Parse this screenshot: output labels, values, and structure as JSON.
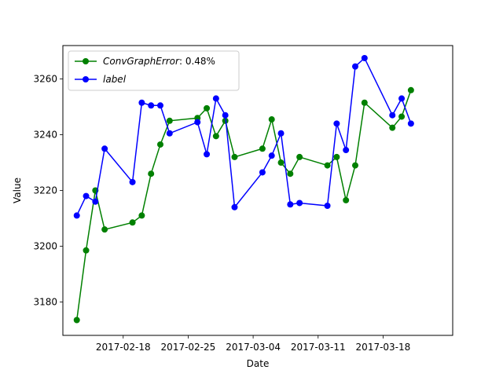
{
  "chart_data": {
    "type": "line",
    "title": "",
    "xlabel": "Date",
    "ylabel": "Value",
    "x_ticks": [
      "2017-02-18",
      "2017-02-25",
      "2017-03-04",
      "2017-03-11",
      "2017-03-18"
    ],
    "y_ticks": [
      3180,
      3200,
      3220,
      3240,
      3260
    ],
    "xlim": [
      "2017-02-11T12:00",
      "2017-03-25T12:00"
    ],
    "ylim": [
      3168,
      3272
    ],
    "grid": false,
    "legend_position": "top-left",
    "series": [
      {
        "name": "ConvGraphError: 0.48%",
        "name_italic": "ConvGraphError",
        "name_plain": ": 0.48%",
        "color": "#008000",
        "points": [
          {
            "x": "2017-02-13",
            "y": 3173.5
          },
          {
            "x": "2017-02-14",
            "y": 3198.5
          },
          {
            "x": "2017-02-15",
            "y": 3220
          },
          {
            "x": "2017-02-16",
            "y": 3206
          },
          {
            "x": "2017-02-19",
            "y": 3208.5
          },
          {
            "x": "2017-02-20",
            "y": 3211
          },
          {
            "x": "2017-02-21",
            "y": 3226
          },
          {
            "x": "2017-02-22",
            "y": 3236.5
          },
          {
            "x": "2017-02-23",
            "y": 3245
          },
          {
            "x": "2017-02-26",
            "y": 3246
          },
          {
            "x": "2017-02-27",
            "y": 3249.5
          },
          {
            "x": "2017-02-28",
            "y": 3239.5
          },
          {
            "x": "2017-03-01",
            "y": 3245
          },
          {
            "x": "2017-03-02",
            "y": 3232
          },
          {
            "x": "2017-03-05",
            "y": 3235
          },
          {
            "x": "2017-03-06",
            "y": 3245.5
          },
          {
            "x": "2017-03-07",
            "y": 3230
          },
          {
            "x": "2017-03-08",
            "y": 3226
          },
          {
            "x": "2017-03-09",
            "y": 3232
          },
          {
            "x": "2017-03-12",
            "y": 3229
          },
          {
            "x": "2017-03-13",
            "y": 3232
          },
          {
            "x": "2017-03-14",
            "y": 3216.5
          },
          {
            "x": "2017-03-15",
            "y": 3229
          },
          {
            "x": "2017-03-16",
            "y": 3251.5
          },
          {
            "x": "2017-03-19",
            "y": 3242.5
          },
          {
            "x": "2017-03-20",
            "y": 3246.5
          },
          {
            "x": "2017-03-21",
            "y": 3256
          }
        ]
      },
      {
        "name": "label",
        "name_italic": "label",
        "name_plain": "",
        "color": "#0000ff",
        "points": [
          {
            "x": "2017-02-13",
            "y": 3211
          },
          {
            "x": "2017-02-14",
            "y": 3218
          },
          {
            "x": "2017-02-15",
            "y": 3216
          },
          {
            "x": "2017-02-16",
            "y": 3235
          },
          {
            "x": "2017-02-19",
            "y": 3223
          },
          {
            "x": "2017-02-20",
            "y": 3251.5
          },
          {
            "x": "2017-02-21",
            "y": 3250.5
          },
          {
            "x": "2017-02-22",
            "y": 3250.5
          },
          {
            "x": "2017-02-23",
            "y": 3240.5
          },
          {
            "x": "2017-02-26",
            "y": 3244.5
          },
          {
            "x": "2017-02-27",
            "y": 3233
          },
          {
            "x": "2017-02-28",
            "y": 3253
          },
          {
            "x": "2017-03-01",
            "y": 3247
          },
          {
            "x": "2017-03-02",
            "y": 3214
          },
          {
            "x": "2017-03-05",
            "y": 3226.5
          },
          {
            "x": "2017-03-06",
            "y": 3232.5
          },
          {
            "x": "2017-03-07",
            "y": 3240.5
          },
          {
            "x": "2017-03-08",
            "y": 3215
          },
          {
            "x": "2017-03-09",
            "y": 3215.5
          },
          {
            "x": "2017-03-12",
            "y": 3214.5
          },
          {
            "x": "2017-03-13",
            "y": 3244
          },
          {
            "x": "2017-03-14",
            "y": 3234.5
          },
          {
            "x": "2017-03-15",
            "y": 3264.5
          },
          {
            "x": "2017-03-16",
            "y": 3267.5
          },
          {
            "x": "2017-03-19",
            "y": 3247
          },
          {
            "x": "2017-03-20",
            "y": 3253
          },
          {
            "x": "2017-03-21",
            "y": 3244
          }
        ]
      }
    ]
  }
}
